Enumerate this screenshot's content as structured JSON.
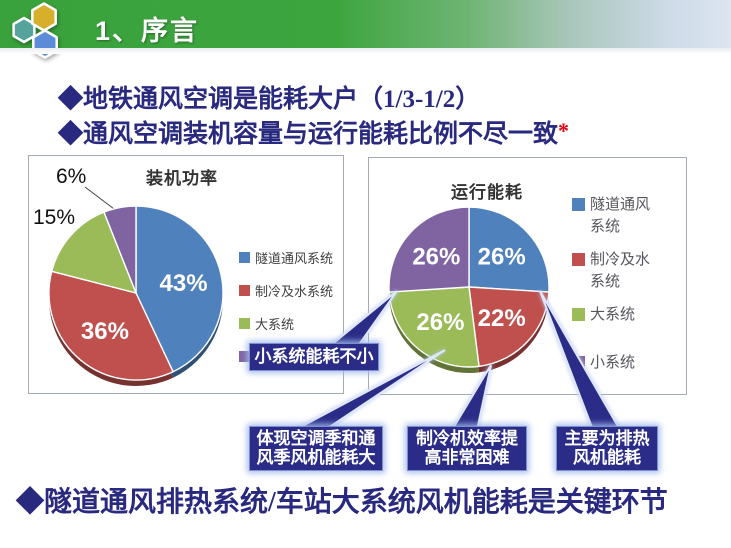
{
  "header": {
    "title": "1、序言"
  },
  "logo": {
    "name": "hexagon-cluster-logo",
    "colors": {
      "teal": "#55a39b",
      "yellow": "#d6b02c",
      "blue": "#5c8bd9"
    }
  },
  "bullets": [
    {
      "text": "◆地铁通风空调是能耗大户（1/3-1/2）"
    },
    {
      "text": "◆通风空调装机容量与运行能耗比例不尽一致",
      "note": "*"
    }
  ],
  "chart_data": [
    {
      "type": "pie",
      "title": "装机功率",
      "labels": [
        "隧道通风系统",
        "制冷及水系统",
        "大系统",
        "小系统"
      ],
      "values": [
        43,
        36,
        15,
        6
      ],
      "value_labels": [
        "43%",
        "36%",
        "15%",
        "6%"
      ],
      "colors": [
        "#4F81BD",
        "#C0504D",
        "#9BBB59",
        "#8064A2"
      ],
      "label_placement": [
        "inside",
        "inside",
        "outside",
        "outside"
      ],
      "legend_position": "right",
      "start_angle": 0
    },
    {
      "type": "pie",
      "title": "运行能耗",
      "labels": [
        "隧道通风系统",
        "制冷及水系统",
        "大系统",
        "小系统"
      ],
      "values": [
        26,
        22,
        26,
        26
      ],
      "value_labels": [
        "26%",
        "22%",
        "26%",
        "26%"
      ],
      "colors": [
        "#4F81BD",
        "#C0504D",
        "#9BBB59",
        "#8064A2"
      ],
      "label_placement": [
        "inside",
        "inside",
        "inside",
        "inside"
      ],
      "legend_position": "right",
      "start_angle": 0
    }
  ],
  "callouts": [
    {
      "text": "小系统能耗不小"
    },
    {
      "text": "体现空调季和通\n风季风机能耗大"
    },
    {
      "text": "制冷机效率提\n高非常困难"
    },
    {
      "text": "主要为排热\n风机能耗"
    }
  ],
  "footer": {
    "text": "◆隧道通风排热系统/车站大系统风机能耗是关键环节"
  },
  "theme": {
    "header_green": "#3da53e",
    "text_navy": "#28297f",
    "callout_navy": "#2b2c87",
    "asterisk_red": "#e1000f"
  }
}
